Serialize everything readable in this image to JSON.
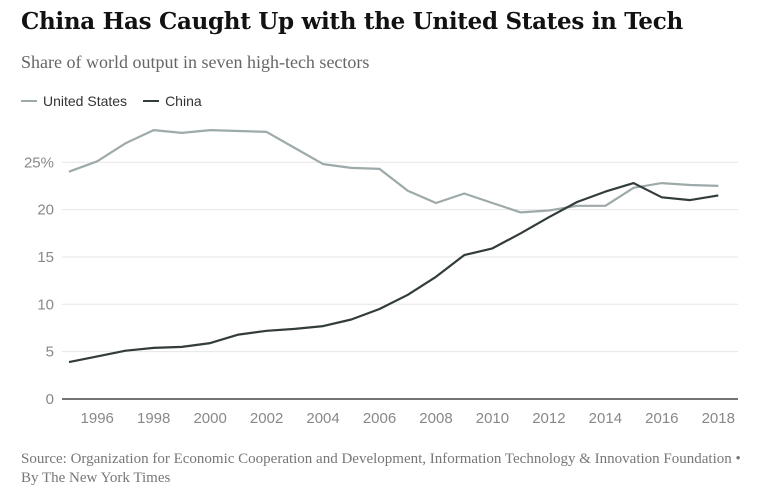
{
  "chart_data": {
    "type": "line",
    "title": "China Has Caught Up with the United States in Tech",
    "subtitle": "Share of world output in seven high-tech sectors",
    "source": "Source: Organization for Economic Cooperation and Development, Information Technology & Innovation Foundation • By The New York Times",
    "x": [
      1995,
      1996,
      1997,
      1998,
      1999,
      2000,
      2001,
      2002,
      2003,
      2004,
      2005,
      2006,
      2007,
      2008,
      2009,
      2010,
      2011,
      2012,
      2013,
      2014,
      2015,
      2016,
      2017,
      2018
    ],
    "series": [
      {
        "name": "United States",
        "color": "#9eaaaa",
        "values": [
          24.0,
          25.1,
          27.0,
          28.4,
          28.1,
          28.4,
          28.3,
          28.2,
          26.5,
          24.8,
          24.4,
          24.3,
          22.0,
          20.7,
          21.7,
          20.7,
          19.7,
          19.9,
          20.4,
          20.4,
          22.3,
          22.8,
          22.6,
          22.5
        ]
      },
      {
        "name": "China",
        "color": "#333c3c",
        "values": [
          3.9,
          4.5,
          5.1,
          5.4,
          5.5,
          5.9,
          6.8,
          7.2,
          7.4,
          7.7,
          8.4,
          9.5,
          11.0,
          12.9,
          15.2,
          15.9,
          17.5,
          19.2,
          20.8,
          21.9,
          22.8,
          21.3,
          21.0,
          21.5
        ]
      }
    ],
    "yticks": [
      "0",
      "5",
      "10",
      "15",
      "20",
      "25%"
    ],
    "ytick_values": [
      0,
      5,
      10,
      15,
      20,
      25
    ],
    "xticks": [
      1996,
      1998,
      2000,
      2002,
      2004,
      2006,
      2008,
      2010,
      2012,
      2014,
      2016,
      2018
    ],
    "ylim": [
      0,
      30
    ],
    "xlim": [
      1995,
      2018
    ],
    "grid": true,
    "legend": "top-left"
  }
}
